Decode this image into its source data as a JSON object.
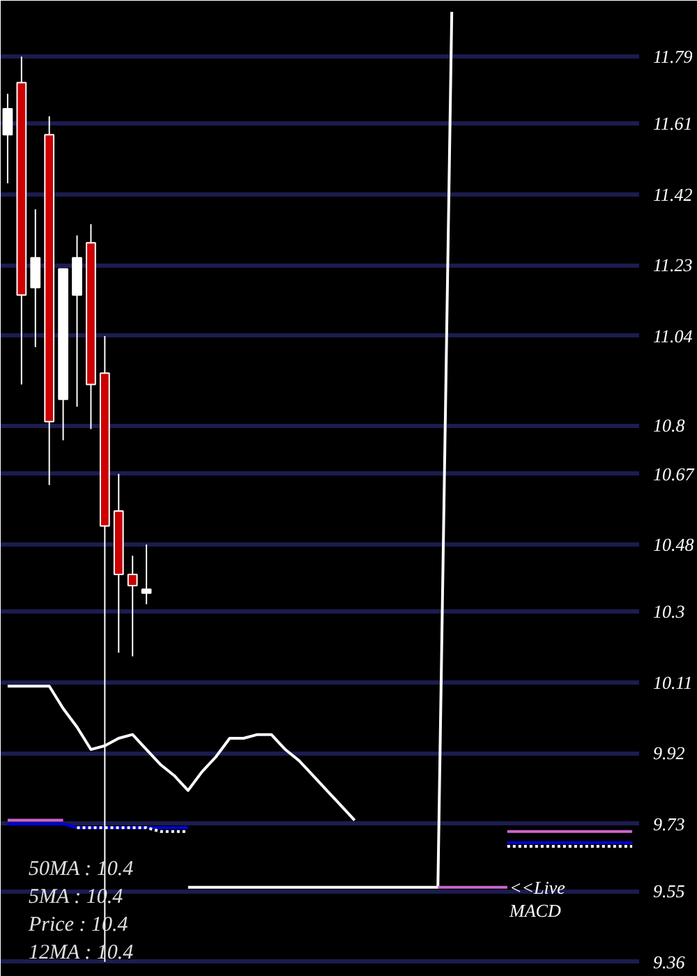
{
  "chart_data": {
    "type": "candlestick",
    "categories": [
      null,
      null,
      null,
      null,
      null,
      null,
      null,
      null,
      null,
      null,
      null,
      null,
      null,
      null,
      null,
      null,
      null,
      null,
      null,
      null,
      null,
      null,
      null,
      null,
      null,
      null,
      null,
      null,
      null,
      null,
      null,
      null,
      null,
      null,
      null,
      null,
      null,
      null,
      null,
      null,
      null,
      null,
      null,
      null,
      null,
      null
    ],
    "ohlc": [
      [
        11.58,
        11.69,
        11.45,
        11.65
      ],
      [
        11.72,
        11.79,
        10.91,
        11.15
      ],
      [
        11.17,
        11.38,
        11.01,
        11.25
      ],
      [
        11.58,
        11.63,
        10.64,
        10.81
      ],
      [
        10.87,
        11.22,
        10.76,
        11.22
      ],
      [
        11.15,
        11.31,
        10.85,
        11.25
      ],
      [
        11.29,
        11.34,
        10.79,
        10.91
      ],
      [
        10.94,
        11.04,
        9.36,
        10.53
      ],
      [
        10.57,
        10.67,
        10.19,
        10.4
      ],
      [
        10.4,
        10.45,
        10.18,
        10.37
      ],
      [
        10.35,
        10.48,
        10.32,
        10.36
      ],
      null,
      null,
      null,
      null,
      null,
      null,
      null,
      null,
      null,
      null,
      null,
      null,
      null,
      null,
      null,
      null,
      null,
      null,
      null,
      null,
      null,
      null,
      null,
      null,
      null,
      null,
      null,
      null,
      null,
      null,
      null,
      null,
      null,
      null,
      null
    ],
    "colors": [
      "#ffffff",
      "#cc0000",
      "#ffffff",
      "#cc0000",
      "#ffffff",
      "#ffffff",
      "#cc0000",
      "#cc0000",
      "#cc0000",
      "#cc0000",
      "#ffffff",
      null,
      null,
      null,
      null,
      null,
      null,
      null,
      null,
      null,
      null,
      null,
      null,
      null,
      null,
      null,
      null,
      null,
      null,
      null,
      null,
      null,
      null,
      null,
      null,
      null,
      null,
      null,
      null,
      null,
      null,
      null,
      null,
      null,
      null,
      null
    ],
    "series": [
      {
        "type": "line",
        "color": "#ffffff",
        "values": [
          10.1,
          10.1,
          10.1,
          10.1,
          10.04,
          9.99,
          9.93,
          9.94,
          9.96,
          9.97,
          9.93,
          9.89,
          9.86,
          9.82,
          9.87,
          9.91,
          9.96,
          9.96,
          9.97,
          9.97,
          9.93,
          9.9,
          9.86,
          9.82,
          9.78,
          9.74,
          null,
          null,
          null,
          null,
          null,
          null,
          null,
          null,
          null,
          null,
          null,
          null,
          null,
          null,
          null,
          null,
          null,
          null,
          null,
          null
        ]
      },
      {
        "type": "line",
        "color": "#ffffff",
        "values": [
          null,
          null,
          null,
          null,
          null,
          null,
          null,
          null,
          null,
          null,
          null,
          null,
          null,
          9.56,
          9.56,
          9.56,
          9.56,
          9.56,
          9.56,
          9.56,
          9.56,
          9.56,
          9.56,
          9.56,
          9.56,
          9.56,
          9.56,
          9.56,
          9.56,
          9.56,
          9.56,
          9.56,
          11.91,
          null,
          null,
          null,
          null,
          null,
          null,
          null,
          null,
          null,
          null,
          null,
          null,
          null
        ]
      },
      {
        "type": "line",
        "color": "#cc66cc",
        "values": [
          9.74,
          9.74,
          9.74,
          9.74,
          9.74,
          null,
          null,
          null,
          null,
          null,
          null,
          null,
          null,
          null,
          null,
          null,
          null,
          null,
          null,
          null,
          null,
          null,
          null,
          null,
          null,
          null,
          null,
          null,
          null,
          null,
          null,
          null,
          null,
          null,
          null,
          null,
          9.71,
          9.71,
          9.71,
          9.71,
          9.71,
          9.71,
          9.71,
          9.71,
          9.71,
          9.71
        ]
      },
      {
        "type": "line",
        "color": "#cc66cc",
        "values": [
          null,
          null,
          null,
          null,
          null,
          null,
          null,
          null,
          null,
          null,
          null,
          null,
          null,
          null,
          null,
          null,
          null,
          null,
          null,
          null,
          null,
          null,
          null,
          null,
          null,
          null,
          null,
          null,
          null,
          null,
          null,
          9.56,
          9.56,
          9.56,
          9.56,
          9.56,
          9.56,
          null,
          null,
          null,
          null,
          null,
          null,
          null,
          null,
          null
        ]
      },
      {
        "type": "line",
        "color": "#0000dd",
        "values": [
          9.73,
          9.73,
          9.73,
          9.73,
          9.73,
          9.72,
          9.72,
          9.72,
          9.72,
          9.72,
          9.72,
          9.72,
          9.72,
          9.72,
          null,
          null,
          null,
          null,
          null,
          null,
          null,
          null,
          null,
          null,
          null,
          null,
          null,
          null,
          null,
          null,
          null,
          null,
          null,
          null,
          null,
          null,
          9.68,
          9.68,
          9.68,
          9.68,
          9.68,
          9.68,
          9.68,
          9.68,
          9.68,
          9.68
        ]
      },
      {
        "type": "line",
        "color": "#ffffff",
        "line_style": "dotted",
        "values": [
          null,
          null,
          null,
          null,
          null,
          9.72,
          9.72,
          9.72,
          9.72,
          9.72,
          9.72,
          9.71,
          9.71,
          9.71,
          null,
          null,
          null,
          null,
          null,
          null,
          null,
          null,
          null,
          null,
          null,
          null,
          null,
          null,
          null,
          null,
          null,
          null,
          null,
          null,
          null,
          null,
          9.67,
          9.67,
          9.67,
          9.67,
          9.67,
          9.67,
          9.67,
          9.67,
          9.67,
          9.67
        ]
      }
    ],
    "ylim": [
      9.35,
      11.91
    ],
    "yticks": [
      11.79,
      11.61,
      11.42,
      11.23,
      11.04,
      10.8,
      10.67,
      10.48,
      10.3,
      10.11,
      9.92,
      9.73,
      9.55,
      9.36
    ],
    "grid": "y",
    "tick_labels": "y",
    "annotations": [
      "50MA : 10.4",
      "5MA : 10.4",
      "Price : 10.4",
      "12MA : 10.4",
      "<<Live MACD"
    ]
  }
}
